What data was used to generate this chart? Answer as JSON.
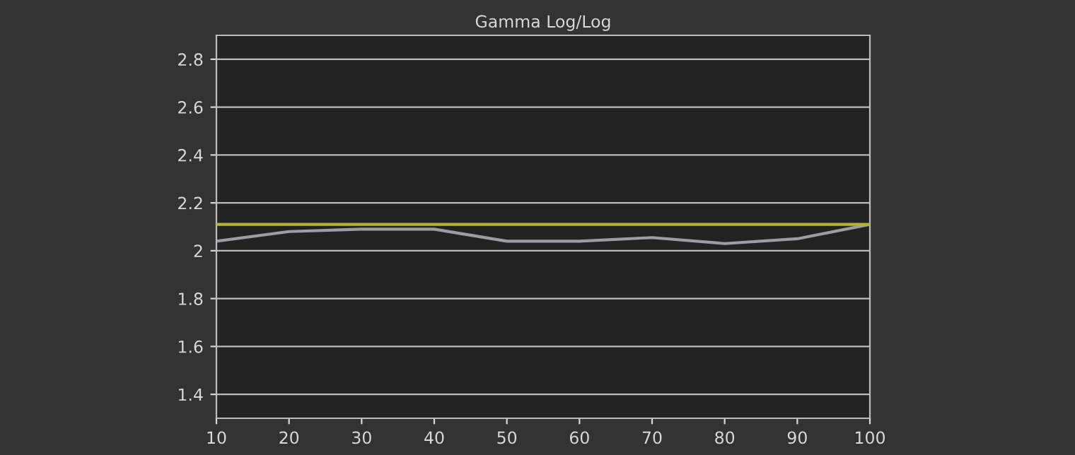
{
  "chart_data": {
    "type": "line",
    "title": "Gamma Log/Log",
    "x": [
      10,
      20,
      30,
      40,
      50,
      60,
      70,
      80,
      90,
      100
    ],
    "series": [
      {
        "color": "#a09ca4",
        "values": [
          2.04,
          2.08,
          2.09,
          2.09,
          2.04,
          2.04,
          2.055,
          2.03,
          2.05,
          2.11
        ]
      }
    ],
    "ref_lines": [
      {
        "axis": "y",
        "value": 2.11,
        "color": "#b4b432"
      }
    ],
    "xlim": [
      10,
      100
    ],
    "xticks": [
      10,
      20,
      30,
      40,
      50,
      60,
      70,
      80,
      90,
      100
    ],
    "ylim": [
      1.3,
      2.9
    ],
    "yticks": [
      1.4,
      1.6,
      1.8,
      2,
      2.2,
      2.4,
      2.6,
      2.8
    ],
    "grid": "y",
    "marker": "none",
    "line_style": "solid",
    "legend": false
  }
}
